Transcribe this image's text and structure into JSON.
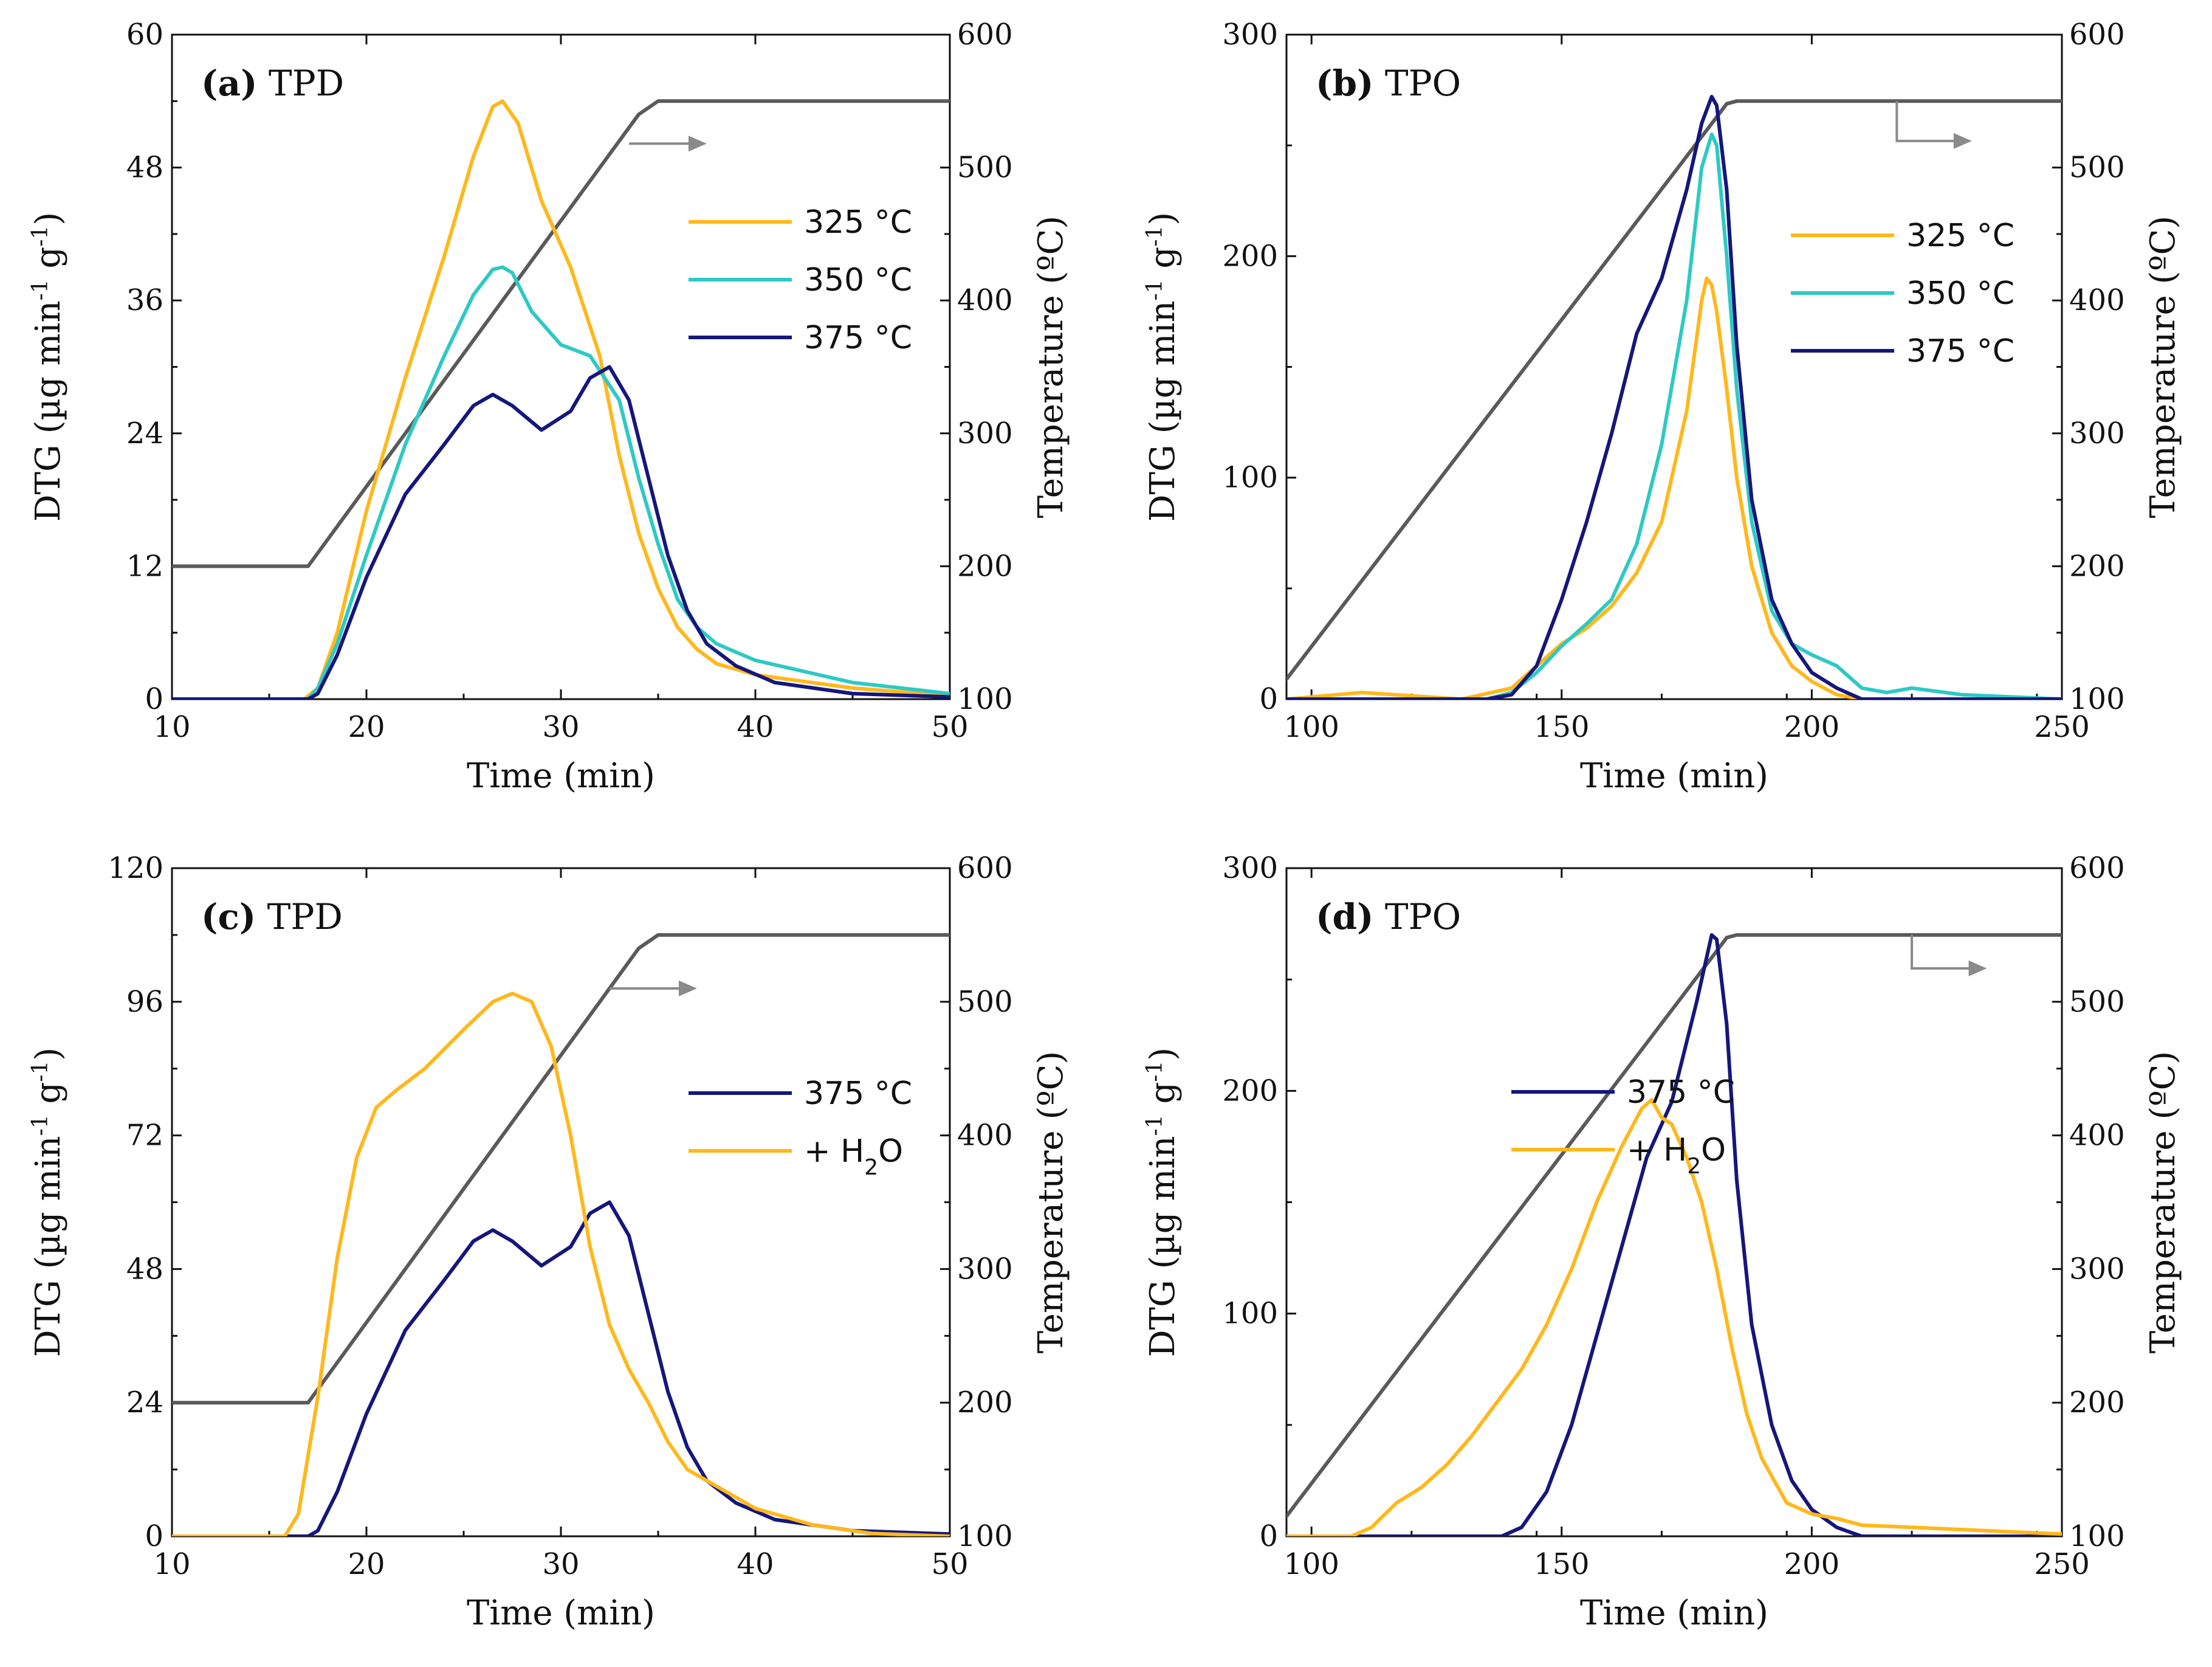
{
  "colors": {
    "c325": "#FFB81C",
    "c350": "#2EC9C4",
    "c375": "#16167C",
    "temp": "#5a5a5a",
    "arrow": "#8a8a8a"
  },
  "chart_data": [
    {
      "type": "line",
      "panel_label": "(a)",
      "panel_title": "TPD",
      "xlabel": "Time (min)",
      "ylabel": "DTG (µg min⁻¹ g⁻¹)",
      "ylabel_right": "Temperature (ºC)",
      "xlim": [
        10,
        50
      ],
      "ylim": [
        0,
        60
      ],
      "y2lim": [
        100,
        600
      ],
      "xticks": [
        10,
        20,
        30,
        40,
        50
      ],
      "yticks": [
        0,
        12,
        24,
        36,
        48,
        60
      ],
      "y2ticks": [
        100,
        200,
        300,
        400,
        500,
        600
      ],
      "temperature": {
        "x": [
          10,
          17,
          34,
          35,
          38,
          50
        ],
        "y": [
          200,
          200,
          540,
          550,
          550,
          550
        ]
      },
      "arrow": {
        "x": [
          33.5,
          37.5
        ],
        "y2": 518
      },
      "series": [
        {
          "name": "325 °C",
          "color_key": "c325",
          "x": [
            10,
            16.8,
            17.5,
            18.5,
            20,
            22,
            24,
            25.5,
            26.5,
            27,
            27.8,
            29,
            30.5,
            32,
            33,
            34,
            35,
            36,
            37,
            38,
            40,
            45,
            50
          ],
          "y": [
            0,
            0,
            1,
            6,
            17,
            29,
            40,
            49,
            53.5,
            54,
            52,
            45,
            39,
            31,
            22,
            15,
            10,
            6.5,
            4.5,
            3.2,
            2.2,
            1,
            0.3
          ]
        },
        {
          "name": "350 °C",
          "color_key": "c350",
          "x": [
            10,
            17,
            17.5,
            18.5,
            20,
            22,
            24,
            25.5,
            26.5,
            27,
            27.5,
            28.5,
            30,
            31.5,
            33,
            34,
            35,
            36,
            37,
            38,
            40,
            45,
            50
          ],
          "y": [
            0,
            0,
            1,
            5,
            13,
            23,
            31,
            36.5,
            38.8,
            39,
            38.5,
            35,
            32,
            31,
            27,
            20,
            14,
            9,
            6.5,
            5,
            3.5,
            1.5,
            0.5
          ]
        },
        {
          "name": "375 °C",
          "color_key": "c375",
          "x": [
            10,
            17,
            17.5,
            18.5,
            20,
            22,
            24,
            25.5,
            26.5,
            27.5,
            29,
            30.5,
            31.5,
            32.5,
            33.5,
            34.5,
            35.5,
            36.5,
            37.5,
            39,
            41,
            45,
            50
          ],
          "y": [
            0,
            0,
            0.5,
            4,
            11,
            18.5,
            23,
            26.5,
            27.5,
            26.5,
            24.3,
            26,
            29,
            30,
            27,
            20,
            13,
            8,
            5,
            3,
            1.5,
            0.5,
            0.2
          ]
        }
      ],
      "legend": [
        "325 °C",
        "350 °C",
        "375 °C"
      ]
    },
    {
      "type": "line",
      "panel_label": "(b)",
      "panel_title": "TPO",
      "xlabel": "Time (min)",
      "ylabel": "DTG (µg min⁻¹ g⁻¹)",
      "ylabel_right": "Temperature (ºC)",
      "xlim": [
        95,
        250
      ],
      "ylim": [
        0,
        300
      ],
      "y2lim": [
        100,
        600
      ],
      "xticks": [
        100,
        150,
        200,
        250
      ],
      "yticks": [
        0,
        100,
        200,
        300
      ],
      "y2ticks": [
        100,
        200,
        300,
        400,
        500,
        600
      ],
      "temperature": {
        "x": [
          95,
          181,
          183,
          185,
          250
        ],
        "y": [
          115,
          538,
          548,
          550,
          550
        ]
      },
      "arrow": {
        "x": [
          217,
          232
        ],
        "y2_top": 550,
        "y2": 520
      },
      "series": [
        {
          "name": "325 °C",
          "color_key": "c325",
          "x": [
            95,
            110,
            130,
            140,
            145,
            150,
            155,
            160,
            165,
            170,
            175,
            178,
            179,
            180,
            181,
            183,
            185,
            188,
            192,
            196,
            200,
            205,
            210,
            220,
            250
          ],
          "y": [
            0,
            3,
            0,
            5,
            15,
            25,
            32,
            42,
            57,
            80,
            130,
            180,
            190,
            187,
            175,
            140,
            100,
            60,
            30,
            15,
            8,
            2,
            0,
            0,
            0
          ]
        },
        {
          "name": "350 °C",
          "color_key": "c350",
          "x": [
            95,
            135,
            140,
            145,
            150,
            155,
            160,
            165,
            170,
            175,
            178,
            180,
            181,
            183,
            185,
            188,
            192,
            196,
            200,
            205,
            210,
            215,
            220,
            230,
            250
          ],
          "y": [
            0,
            0,
            3,
            12,
            24,
            34,
            45,
            70,
            115,
            180,
            240,
            255,
            250,
            200,
            140,
            80,
            40,
            25,
            20,
            15,
            5,
            3,
            5,
            2,
            0
          ]
        },
        {
          "name": "375 °C",
          "color_key": "c375",
          "x": [
            95,
            135,
            140,
            145,
            150,
            155,
            160,
            165,
            170,
            175,
            178,
            180,
            181,
            183,
            185,
            188,
            192,
            196,
            200,
            205,
            210,
            220,
            250
          ],
          "y": [
            0,
            0,
            2,
            15,
            45,
            80,
            120,
            165,
            190,
            230,
            260,
            272,
            268,
            230,
            160,
            90,
            45,
            25,
            12,
            5,
            0,
            0,
            0
          ]
        }
      ],
      "legend": [
        "325 °C",
        "350 °C",
        "375 °C"
      ]
    },
    {
      "type": "line",
      "panel_label": "(c)",
      "panel_title": "TPD",
      "xlabel": "Time (min)",
      "ylabel": "DTG (µg min⁻¹ g⁻¹)",
      "ylabel_right": "Temperature (ºC)",
      "xlim": [
        10,
        50
      ],
      "ylim": [
        0,
        120
      ],
      "y2lim": [
        100,
        600
      ],
      "xticks": [
        10,
        20,
        30,
        40,
        50
      ],
      "yticks": [
        0,
        24,
        48,
        72,
        96,
        120
      ],
      "y2ticks": [
        100,
        200,
        300,
        400,
        500,
        600
      ],
      "temperature": {
        "x": [
          10,
          17,
          34,
          35,
          38,
          50
        ],
        "y": [
          200,
          200,
          540,
          550,
          550,
          550
        ]
      },
      "arrow": {
        "x": [
          32.5,
          37
        ],
        "y2": 510
      },
      "series": [
        {
          "name": "375 °C",
          "color_key": "c375",
          "x": [
            10,
            17,
            17.5,
            18.5,
            20,
            22,
            24,
            25.5,
            26.5,
            27.5,
            29,
            30.5,
            31.5,
            32.5,
            33.5,
            34.5,
            35.5,
            36.5,
            37.5,
            39,
            41,
            45,
            50
          ],
          "y": [
            0,
            0,
            1,
            8,
            22,
            37,
            46,
            53,
            55,
            53,
            48.6,
            52,
            58,
            60,
            54,
            40,
            26,
            16,
            10,
            6,
            3,
            1,
            0.4
          ]
        },
        {
          "name": "+ H₂O",
          "color_key": "c325",
          "x": [
            10,
            15.8,
            16.5,
            17.5,
            18.5,
            19.5,
            20.5,
            21.5,
            23,
            25,
            26.5,
            27.5,
            28.5,
            29.5,
            30.5,
            31.5,
            32.5,
            33.5,
            34.5,
            35.5,
            36.5,
            38,
            40,
            43,
            46,
            50
          ],
          "y": [
            0,
            0,
            4,
            25,
            50,
            68,
            77,
            80,
            84,
            91,
            96,
            97.5,
            96,
            88,
            72,
            52,
            38,
            30,
            24,
            17,
            12,
            9,
            5,
            2,
            0.5,
            0
          ]
        }
      ],
      "legend": [
        "375 °C",
        "+ H₂O"
      ]
    },
    {
      "type": "line",
      "panel_label": "(d)",
      "panel_title": "TPO",
      "xlabel": "Time (min)",
      "ylabel": "DTG (µg min⁻¹ g⁻¹)",
      "ylabel_right": "Temperature (ºC)",
      "xlim": [
        95,
        250
      ],
      "ylim": [
        0,
        300
      ],
      "y2lim": [
        100,
        600
      ],
      "xticks": [
        100,
        150,
        200,
        250
      ],
      "yticks": [
        0,
        100,
        200,
        300
      ],
      "y2ticks": [
        100,
        200,
        300,
        400,
        500,
        600
      ],
      "temperature": {
        "x": [
          95,
          181,
          183,
          185,
          250
        ],
        "y": [
          115,
          538,
          548,
          550,
          550
        ]
      },
      "arrow": {
        "x": [
          220,
          235
        ],
        "y2_top": 550,
        "y2": 525
      },
      "series": [
        {
          "name": "375 °C",
          "color_key": "c375",
          "x": [
            95,
            138,
            142,
            147,
            152,
            157,
            162,
            167,
            172,
            177,
            180,
            181,
            183,
            185,
            188,
            192,
            196,
            200,
            205,
            210,
            220,
            250
          ],
          "y": [
            0,
            0,
            4,
            20,
            50,
            90,
            130,
            170,
            195,
            240,
            270,
            268,
            230,
            160,
            95,
            50,
            25,
            12,
            4,
            0,
            0,
            0
          ]
        },
        {
          "name": "+ H₂O",
          "color_key": "c325",
          "x": [
            95,
            108,
            112,
            117,
            122,
            127,
            132,
            137,
            142,
            147,
            152,
            157,
            162,
            166,
            168,
            170,
            172,
            175,
            178,
            181,
            184,
            187,
            190,
            195,
            200,
            205,
            210,
            220,
            230,
            240,
            250
          ],
          "y": [
            0,
            0,
            4,
            15,
            22,
            32,
            45,
            60,
            75,
            95,
            120,
            150,
            175,
            192,
            196,
            188,
            185,
            170,
            150,
            120,
            85,
            55,
            35,
            15,
            10,
            8,
            5,
            4,
            3,
            2,
            1
          ]
        }
      ],
      "legend": [
        "375 °C",
        "+ H₂O"
      ]
    }
  ]
}
